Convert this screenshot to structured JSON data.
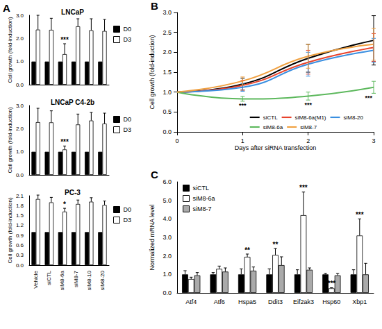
{
  "chart_data": [
    {
      "type": "bar",
      "panel": "A",
      "title": "LNCaP",
      "y_label": "Cell growth (fold-induction)",
      "categories": [
        "Vehicle",
        "siCTL",
        "siM8-6a",
        "siM8-7",
        "siM8-10",
        "siM8-20"
      ],
      "series": [
        {
          "name": "D0",
          "color": "#000000",
          "values": [
            1,
            1,
            1,
            1,
            1,
            1
          ]
        },
        {
          "name": "D3",
          "color": "#ffffff",
          "values": [
            2.38,
            2.37,
            1.32,
            2.52,
            2.35,
            2.32
          ],
          "errors": [
            0.62,
            0.5,
            0.45,
            0.33,
            0.5,
            0.5
          ]
        }
      ],
      "ylim": [
        0,
        3
      ],
      "yticks": [
        {
          "value": 0,
          "label": "0.0"
        },
        {
          "value": 1,
          "label": "1.0"
        },
        {
          "value": 2,
          "label": "2.0"
        },
        {
          "value": 3,
          "label": "3.0"
        }
      ],
      "grid": false,
      "legend": "right",
      "tick_labels": "y",
      "annotations": [
        {
          "text": "***",
          "category": "siM8-6a",
          "series": "D3"
        }
      ]
    },
    {
      "type": "bar",
      "title": "LNCaP C4-2b",
      "y_label": "Cell growth (fold-induction)",
      "categories": [
        "Vehicle",
        "siCTL",
        "siM8-6a",
        "siM8-7",
        "siM8-10",
        "siM8-20"
      ],
      "series": [
        {
          "name": "D0",
          "color": "#000000",
          "values": [
            1,
            1,
            1,
            1,
            1,
            1
          ]
        },
        {
          "name": "D3",
          "color": "#ffffff",
          "values": [
            2.28,
            2.27,
            1.1,
            2.18,
            2.35,
            2.22
          ],
          "errors": [
            0.6,
            0.5,
            0.15,
            0.45,
            0.35,
            0.45
          ]
        }
      ],
      "ylim": [
        0,
        3
      ],
      "yticks": [
        {
          "value": 0,
          "label": "0.0"
        },
        {
          "value": 1,
          "label": "1.0"
        },
        {
          "value": 2,
          "label": "2.0"
        },
        {
          "value": 3,
          "label": "3.0"
        }
      ],
      "grid": false,
      "legend": "right",
      "tick_labels": "y",
      "annotations": [
        {
          "text": "***",
          "category": "siM8-6a",
          "series": "D3"
        }
      ]
    },
    {
      "type": "bar",
      "title": "PC-3",
      "y_label": "Cell growth (fold-induction)",
      "categories": [
        "Vehicle",
        "siCTL",
        "siM8-6a",
        "siM8-7",
        "siM8-10",
        "siM8-20"
      ],
      "series": [
        {
          "name": "D0",
          "color": "#000000",
          "values": [
            1,
            1,
            1,
            1,
            1,
            1
          ]
        },
        {
          "name": "D3",
          "color": "#ffffff",
          "values": [
            2.0,
            1.9,
            1.62,
            1.85,
            1.92,
            1.82
          ],
          "errors": [
            0.12,
            0.15,
            0.1,
            0.12,
            0.12,
            0.12
          ]
        }
      ],
      "ylim": [
        0,
        2.1
      ],
      "yticks": [
        {
          "value": 0,
          "label": "0.0"
        },
        {
          "value": 0.3,
          "label": "0.3"
        },
        {
          "value": 0.6,
          "label": "0.6"
        },
        {
          "value": 0.9,
          "label": "0.9"
        },
        {
          "value": 1.2,
          "label": "1.2"
        },
        {
          "value": 1.5,
          "label": "1.5"
        },
        {
          "value": 1.8,
          "label": "1.8"
        },
        {
          "value": 2.1,
          "label": "2.1"
        }
      ],
      "grid": false,
      "legend": "right",
      "annotations": [
        {
          "text": "*",
          "category": "siM8-6a",
          "series": "D3"
        }
      ]
    },
    {
      "type": "line",
      "panel": "B",
      "x_label": "Days after siRNA transfection",
      "y_label": "Cell growth (fold-induction)",
      "x": [
        0,
        1,
        2,
        3
      ],
      "series": [
        {
          "name": "siCTL",
          "color": "#000000",
          "values": [
            1,
            1.2,
            1.85,
            2.3
          ],
          "errors": [
            0,
            0.15,
            0.35,
            0.62
          ]
        },
        {
          "name": "siM8-6a(M1)",
          "color": "#e8432d",
          "values": [
            1,
            1.17,
            1.75,
            2.12
          ],
          "errors": [
            0,
            0.12,
            0.3,
            0.35
          ]
        },
        {
          "name": "siM8-20",
          "color": "#3a8fe0",
          "values": [
            1,
            1.12,
            1.7,
            2.05
          ],
          "errors": [
            0,
            0.1,
            0.3,
            0.3
          ]
        },
        {
          "name": "siM8-6a",
          "color": "#5cb85c",
          "values": [
            1,
            0.83,
            0.9,
            1.12
          ],
          "errors": [
            0,
            0.06,
            0.1,
            0.15
          ]
        },
        {
          "name": "siM8-7",
          "color": "#f0a040",
          "values": [
            1,
            1.28,
            1.9,
            2.2
          ],
          "errors": [
            0,
            0.1,
            0.3,
            0.4
          ]
        }
      ],
      "xlim": [
        0,
        3
      ],
      "xticks": [
        0,
        1,
        2,
        3
      ],
      "ylim": [
        0,
        3
      ],
      "yticks": [
        {
          "value": 0,
          "label": "0.0"
        },
        {
          "value": 0.5,
          "label": "0.5"
        },
        {
          "value": 1,
          "label": "1.0"
        },
        {
          "value": 1.5,
          "label": "1.5"
        },
        {
          "value": 2,
          "label": "2.0"
        },
        {
          "value": 2.5,
          "label": "2.5"
        },
        {
          "value": 3,
          "label": "3.0"
        }
      ],
      "grid": false,
      "legend": "lower right",
      "annotations": [
        {
          "text": "***",
          "x": 1,
          "series": "siM8-6a"
        },
        {
          "text": "***",
          "x": 2,
          "series": "siM8-6a"
        },
        {
          "text": "***",
          "x": 3,
          "series": "siM8-6a"
        }
      ]
    },
    {
      "type": "bar",
      "panel": "C",
      "y_label": "Normalized mRNA level",
      "categories": [
        "Atf4",
        "Atf6",
        "Hspa5",
        "Ddit3",
        "Eif2ak3",
        "Hsp60",
        "Xbp1"
      ],
      "series": [
        {
          "name": "siCTL",
          "color": "#000000",
          "values": [
            1,
            1,
            1,
            1,
            1,
            1,
            1
          ],
          "errors": [
            0.2,
            0.1,
            0.3,
            0.3,
            0.25,
            0.05,
            0.25
          ]
        },
        {
          "name": "siM8-6a",
          "color": "#ffffff",
          "values": [
            0.75,
            1.3,
            1.95,
            2.05,
            4.2,
            0.25,
            3.1
          ],
          "errors": [
            0.1,
            0.15,
            0.15,
            0.35,
            1.25,
            0.03,
            0.9
          ]
        },
        {
          "name": "siM8-7",
          "color": "#aaaaaa",
          "values": [
            0.95,
            1.15,
            1.2,
            1.5,
            1.25,
            0.95,
            1.0
          ],
          "errors": [
            0.15,
            0.2,
            0.2,
            0.45,
            0.1,
            0.1,
            0.6
          ]
        }
      ],
      "ylim": [
        0,
        6
      ],
      "yticks": [
        {
          "value": 0,
          "label": "0.0"
        },
        {
          "value": 1,
          "label": "1.0"
        },
        {
          "value": 2,
          "label": "2.0"
        },
        {
          "value": 3,
          "label": "3.0"
        },
        {
          "value": 4,
          "label": "4.0"
        },
        {
          "value": 5,
          "label": "5.0"
        },
        {
          "value": 6,
          "label": "6.0"
        }
      ],
      "grid": false,
      "legend": "upper left",
      "annotations": [
        {
          "text": "**",
          "category": "Hspa5",
          "series": "siM8-6a"
        },
        {
          "text": "**",
          "category": "Ddit3",
          "series": "siM8-6a"
        },
        {
          "text": "***",
          "category": "Eif2ak3",
          "series": "siM8-6a"
        },
        {
          "text": "***",
          "category": "Hsp60",
          "series": "siM8-6a"
        },
        {
          "text": "***",
          "category": "Xbp1",
          "series": "siM8-6a"
        }
      ]
    }
  ]
}
